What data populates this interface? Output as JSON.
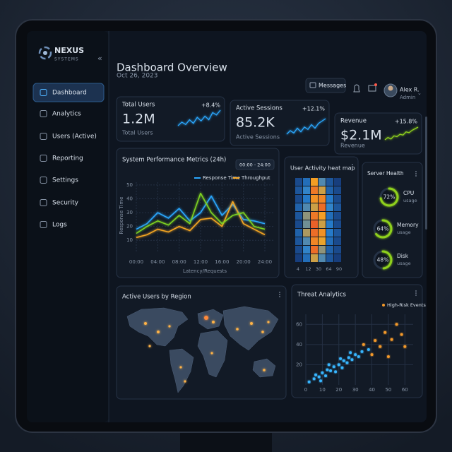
{
  "brand": {
    "name": "NEXUS",
    "tagline": "SYSTEMS"
  },
  "sidebar": {
    "items": [
      "Dashboard",
      "Analytics",
      "Users (Active)",
      "Reporting",
      "Settings",
      "Security",
      "Logs"
    ]
  },
  "header": {
    "title": "Dashboard Overview",
    "date": "Oct 26, 2023",
    "messages": "Messages",
    "user_name": "Alex R.",
    "user_role": "Admin"
  },
  "kpis": [
    {
      "label": "Total Users",
      "value": "1.2M",
      "change": "+8.4%",
      "caption": "Total Users",
      "trend": [
        20,
        26,
        22,
        30,
        24,
        34,
        28,
        36,
        30,
        42,
        38,
        46
      ]
    },
    {
      "label": "Active Sessions",
      "value": "85.2K",
      "change": "+12.1%",
      "caption": "Active Sessions",
      "trend": [
        18,
        24,
        20,
        28,
        22,
        30,
        26,
        34,
        28,
        36,
        40,
        44
      ]
    },
    {
      "label": "Revenue",
      "value": "$2.1M",
      "change": "+15.8%",
      "caption": "Revenue",
      "trend": [
        16,
        22,
        18,
        26,
        24,
        30,
        28,
        36,
        34,
        40,
        44,
        48
      ]
    }
  ],
  "performance_chart": {
    "type": "line",
    "title": "System Performance Metrics (24h)",
    "range": "00:00 - 24:00",
    "y_label": "Response Time",
    "x_label": "Latency/Requests",
    "x": [
      0,
      2,
      4,
      6,
      8,
      10,
      12,
      14,
      16,
      18,
      20,
      22,
      24
    ],
    "xlim": [
      0,
      24
    ],
    "xticks": [
      {
        "value": 0,
        "label": "00:00"
      },
      {
        "value": 4,
        "label": "04:00"
      },
      {
        "value": 8,
        "label": "08:00"
      },
      {
        "value": 12,
        "label": "12:00"
      },
      {
        "value": 16,
        "label": "16:00"
      },
      {
        "value": 20,
        "label": "20:00"
      },
      {
        "value": 24,
        "label": "24:00"
      }
    ],
    "ylim": [
      5,
      52
    ],
    "yticks": [
      10,
      20,
      30,
      40,
      50
    ],
    "grid": true,
    "series": [
      {
        "name": "Response Time",
        "color": "#2aa8ff",
        "values": [
          18,
          22,
          30,
          26,
          33,
          24,
          30,
          42,
          28,
          36,
          25,
          24,
          22
        ]
      },
      {
        "name": "Throughput",
        "color": "#f5a623",
        "values": [
          12,
          14,
          18,
          16,
          20,
          17,
          25,
          26,
          20,
          38,
          22,
          18,
          14
        ]
      },
      {
        "color": "#7ed321",
        "values": [
          15,
          20,
          24,
          21,
          28,
          22,
          44,
          30,
          22,
          28,
          30,
          20,
          18
        ]
      }
    ]
  },
  "heatmap": {
    "type": "heatmap",
    "title": "User Activity heat map",
    "x_labels": [
      4,
      12,
      30,
      64,
      90
    ],
    "values": [
      [
        10,
        25,
        70,
        40,
        15,
        5
      ],
      [
        15,
        35,
        85,
        60,
        20,
        10
      ],
      [
        10,
        30,
        75,
        80,
        30,
        10
      ],
      [
        20,
        40,
        60,
        90,
        35,
        15
      ],
      [
        15,
        50,
        85,
        70,
        25,
        10
      ],
      [
        10,
        45,
        95,
        60,
        30,
        10
      ],
      [
        20,
        55,
        90,
        75,
        30,
        15
      ],
      [
        15,
        40,
        80,
        65,
        25,
        10
      ],
      [
        10,
        35,
        90,
        50,
        20,
        10
      ],
      [
        5,
        25,
        60,
        40,
        15,
        5
      ]
    ]
  },
  "server_health": {
    "type": "gauge",
    "title": "Server Health",
    "categories": [
      "CPU",
      "Memory",
      "Disk"
    ],
    "caption": "usage",
    "values": [
      72,
      64,
      48
    ],
    "value_labels": [
      "72%",
      "64%",
      "48%"
    ],
    "color": "#8fd11e"
  },
  "region_map": {
    "title": "Active Users by Region"
  },
  "threat_chart": {
    "type": "scatter",
    "title": "Threat Analytics",
    "xlim": [
      0,
      65
    ],
    "xticks": [
      0,
      10,
      20,
      30,
      40,
      50,
      60
    ],
    "ylim": [
      0,
      70
    ],
    "yticks": [
      20,
      40,
      60
    ],
    "grid": true,
    "series": [
      {
        "color": "#37b6ff",
        "x": [
          2,
          5,
          6,
          8,
          10,
          12,
          13,
          15,
          17,
          18,
          20,
          22,
          23,
          25,
          26,
          28,
          30,
          32,
          34,
          38,
          9,
          14,
          21,
          27
        ],
        "values": [
          3,
          6,
          10,
          8,
          12,
          9,
          15,
          14,
          18,
          13,
          20,
          17,
          24,
          22,
          27,
          25,
          30,
          28,
          33,
          35,
          4,
          20,
          26,
          32
        ]
      },
      {
        "name": "High-Risk Events",
        "color": "#f59a2a",
        "x": [
          40,
          42,
          45,
          48,
          52,
          55,
          58,
          35,
          60,
          50
        ],
        "values": [
          30,
          44,
          38,
          52,
          45,
          60,
          50,
          40,
          38,
          28
        ]
      }
    ]
  }
}
